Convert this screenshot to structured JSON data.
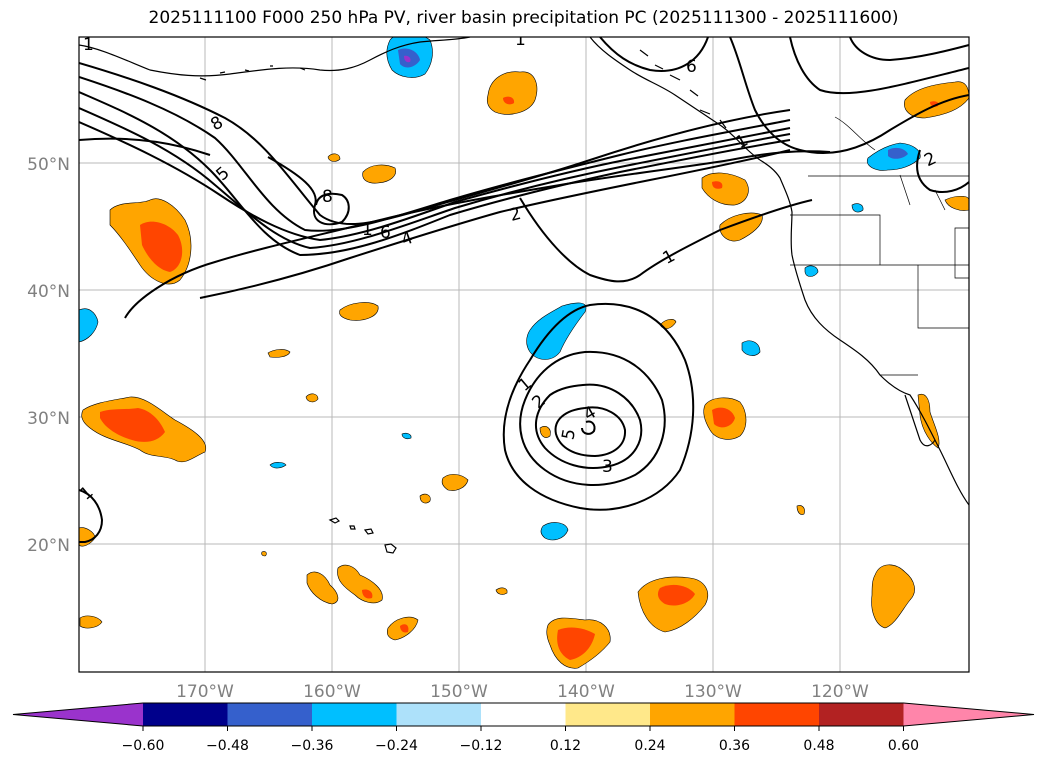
{
  "title": "2025111100 F000 250 hPa PV, river basin precipitation PC (2025111300 - 2025111600)",
  "lon_ticks": [
    "170°W",
    "160°W",
    "150°W",
    "140°W",
    "130°W",
    "120°W"
  ],
  "lat_ticks": [
    "50°N",
    "40°N",
    "30°N",
    "20°N"
  ],
  "colorbar": {
    "ticks": [
      "−0.60",
      "−0.48",
      "−0.36",
      "−0.24",
      "−0.12",
      "0.12",
      "0.24",
      "0.36",
      "0.48",
      "0.60"
    ],
    "colors": [
      "#9a33cc",
      "#00008b",
      "#3560cc",
      "#00bfff",
      "#ade1fa",
      "#ffffff",
      "#ffe88a",
      "#ffa500",
      "#ff4500",
      "#b22222",
      "#ff85aa"
    ]
  },
  "contour_labels": [
    "1",
    "1",
    "1",
    "1",
    "1",
    "2",
    "2",
    "2",
    "3",
    "4",
    "4",
    "5",
    "5",
    "6",
    "6",
    "8",
    "8",
    "1",
    "1"
  ]
}
